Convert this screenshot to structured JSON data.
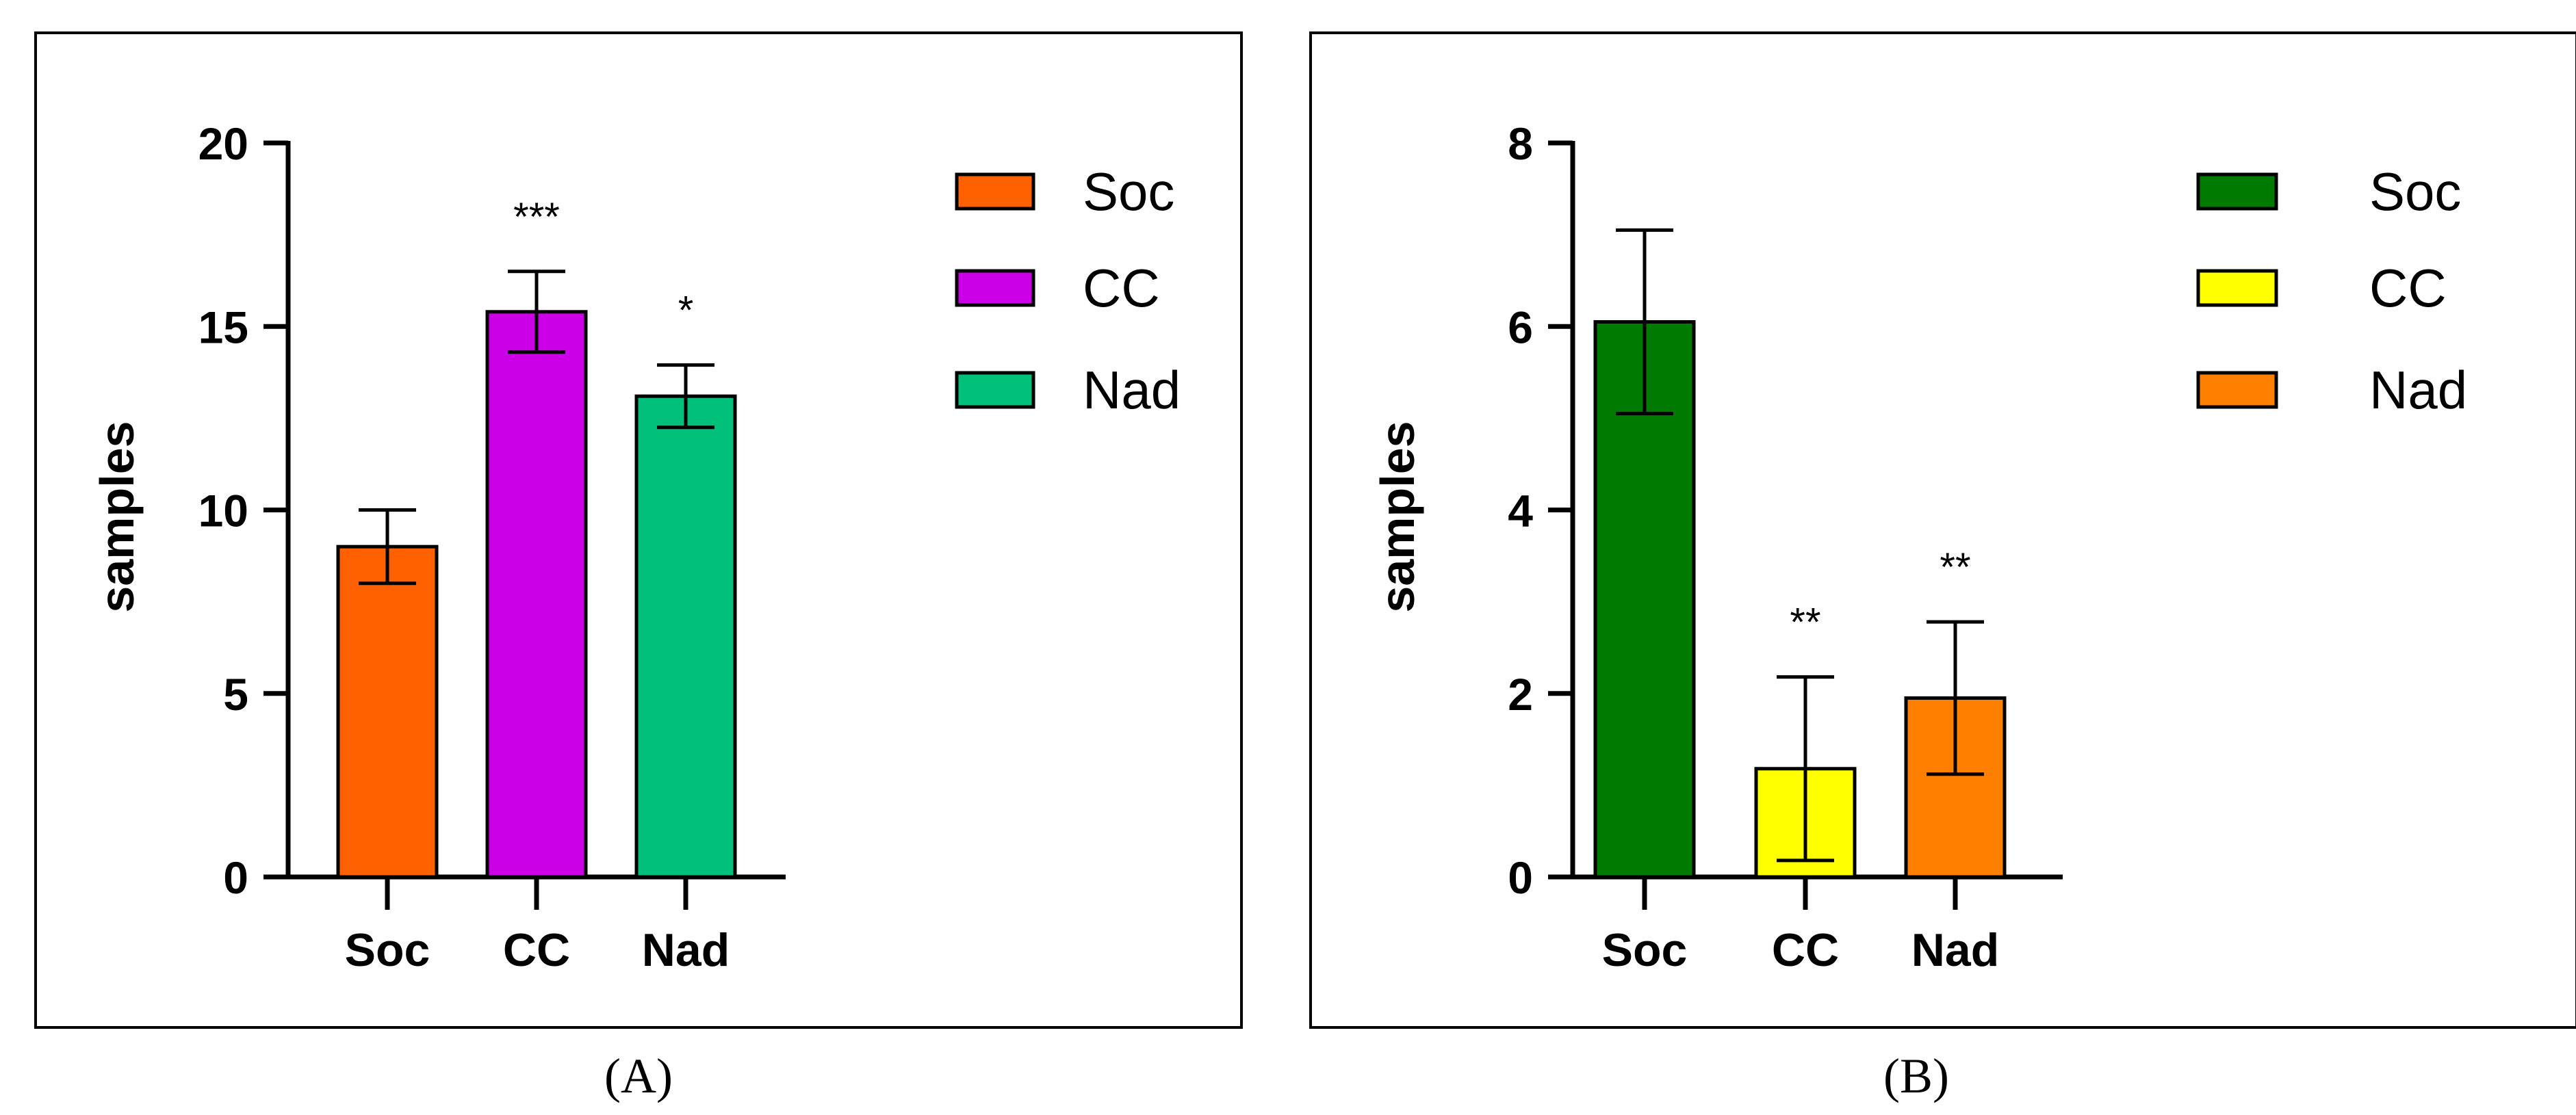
{
  "chart_data": [
    {
      "type": "bar",
      "panel_label": "(A)",
      "title": "",
      "xlabel": "",
      "ylabel": "samples",
      "ylim": [
        0,
        20
      ],
      "yticks": [
        0,
        5,
        10,
        15,
        20
      ],
      "ytick_labels": [
        "0",
        "5",
        "10",
        "15",
        "20"
      ],
      "categories": [
        "Soc",
        "CC",
        "Nad"
      ],
      "values": [
        9.0,
        15.4,
        13.1
      ],
      "errors": [
        1.0,
        1.1,
        0.85
      ],
      "significance": [
        "",
        "***",
        "*"
      ],
      "colors": [
        "#ff6000",
        "#cc00e6",
        "#00c07a"
      ],
      "legend": [
        {
          "label": "Soc",
          "color": "#ff6000"
        },
        {
          "label": "CC",
          "color": "#cc00e6"
        },
        {
          "label": "Nad",
          "color": "#00c07a"
        }
      ]
    },
    {
      "type": "bar",
      "panel_label": "(B)",
      "title": "",
      "xlabel": "",
      "ylabel": "samples",
      "ylim": [
        0,
        8
      ],
      "yticks": [
        0,
        2,
        4,
        6,
        8
      ],
      "ytick_labels": [
        "0",
        "2",
        "4",
        "6",
        "8"
      ],
      "categories": [
        "Soc",
        "CC",
        "Nad"
      ],
      "values": [
        6.05,
        1.18,
        1.95
      ],
      "errors": [
        1.0,
        1.0,
        0.83
      ],
      "significance": [
        "",
        "**",
        "**"
      ],
      "colors": [
        "#007a00",
        "#ffff00",
        "#ff7f00"
      ],
      "legend": [
        {
          "label": "Soc",
          "color": "#007a00"
        },
        {
          "label": "CC",
          "color": "#ffff00"
        },
        {
          "label": "Nad",
          "color": "#ff7f00"
        }
      ]
    }
  ]
}
